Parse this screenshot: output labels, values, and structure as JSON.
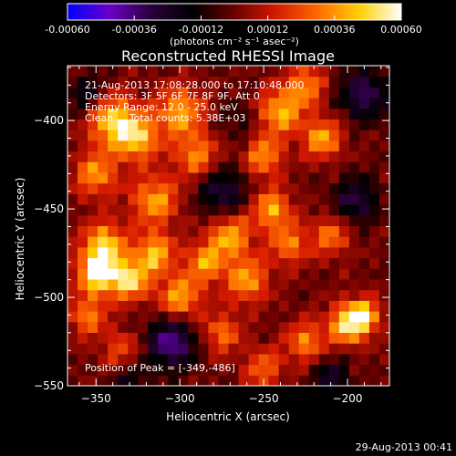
{
  "chart_data": {
    "type": "heatmap",
    "title": "Reconstructed RHESSI Image",
    "xlabel": "Heliocentric X (arcsec)",
    "ylabel": "Heliocentric Y (arcsec)",
    "xlim": [
      -367,
      -175
    ],
    "ylim": [
      -550,
      -369
    ],
    "x_ticks": [
      -350,
      -300,
      -250,
      -200
    ],
    "y_ticks": [
      -400,
      -450,
      -500,
      -550
    ],
    "colorbar": {
      "tick_labels": [
        "-0.00060",
        "-0.00036",
        "-0.00012",
        "0.00012",
        "0.00036",
        "0.00060"
      ],
      "tick_values": [
        -0.0006,
        -0.00036,
        -0.00012,
        0.00012,
        0.00036,
        0.0006
      ],
      "range": [
        -0.0006,
        0.0006
      ],
      "unit_label": "(photons cm⁻² s⁻¹ asec⁻²)"
    },
    "colormap": [
      "#0000ff",
      "#6a00c8",
      "#2a003a",
      "#000000",
      "#6a0000",
      "#d41a00",
      "#ff6a00",
      "#ffd000",
      "#ffffff"
    ],
    "info_lines": [
      "21-Aug-2013 17:08:28.000 to 17:10:48.000",
      "Detectors: 3F 5F 6F 7F 8F 9F, Att 0",
      "Energy Range: 12.0 - 25.0 keV",
      "Clean     Total counts: 5.38E+03"
    ],
    "peak_label": "Position of Peak = [-349,-486]",
    "peak_position": [
      -349,
      -486
    ],
    "image_grid": {
      "description": "Approximate clean-image intensity sampled on a regular grid; values in colorbar units",
      "nx": 32,
      "ny": 30,
      "blobs": [
        {
          "x": -340,
          "y": -400,
          "amp": 0.00048,
          "sigma": 10
        },
        {
          "x": -325,
          "y": -410,
          "amp": 0.00042,
          "sigma": 9
        },
        {
          "x": -300,
          "y": -395,
          "amp": 0.0004,
          "sigma": 10
        },
        {
          "x": -290,
          "y": -420,
          "amp": 0.00034,
          "sigma": 9
        },
        {
          "x": -350,
          "y": -430,
          "amp": 0.00036,
          "sigma": 9
        },
        {
          "x": -315,
          "y": -445,
          "amp": 0.00038,
          "sigma": 10
        },
        {
          "x": -345,
          "y": -470,
          "amp": 0.00045,
          "sigma": 9
        },
        {
          "x": -349,
          "y": -486,
          "amp": 0.0006,
          "sigma": 8
        },
        {
          "x": -330,
          "y": -490,
          "amp": 0.0005,
          "sigma": 8
        },
        {
          "x": -315,
          "y": -475,
          "amp": 0.00044,
          "sigma": 8
        },
        {
          "x": -300,
          "y": -500,
          "amp": 0.0004,
          "sigma": 9
        },
        {
          "x": -285,
          "y": -480,
          "amp": 0.00036,
          "sigma": 8
        },
        {
          "x": -270,
          "y": -465,
          "amp": 0.0004,
          "sigma": 9
        },
        {
          "x": -260,
          "y": -490,
          "amp": 0.00038,
          "sigma": 9
        },
        {
          "x": -245,
          "y": -450,
          "amp": 0.0004,
          "sigma": 8
        },
        {
          "x": -250,
          "y": -420,
          "amp": 0.00036,
          "sigma": 8
        },
        {
          "x": -240,
          "y": -395,
          "amp": 0.00042,
          "sigma": 9
        },
        {
          "x": -215,
          "y": -410,
          "amp": 0.0004,
          "sigma": 8
        },
        {
          "x": -225,
          "y": -380,
          "amp": 0.00034,
          "sigma": 8
        },
        {
          "x": -235,
          "y": -470,
          "amp": 0.00032,
          "sigma": 8
        },
        {
          "x": -210,
          "y": -465,
          "amp": 0.0003,
          "sigma": 8
        },
        {
          "x": -200,
          "y": -515,
          "amp": 0.00048,
          "sigma": 8
        },
        {
          "x": -190,
          "y": -510,
          "amp": 0.0004,
          "sigma": 7
        },
        {
          "x": -225,
          "y": -525,
          "amp": 0.00034,
          "sigma": 8
        },
        {
          "x": -275,
          "y": -520,
          "amp": 0.0003,
          "sigma": 8
        },
        {
          "x": -250,
          "y": -540,
          "amp": 0.00028,
          "sigma": 8
        },
        {
          "x": -355,
          "y": -510,
          "amp": 0.00032,
          "sigma": 8
        },
        {
          "x": -335,
          "y": -530,
          "amp": 0.00024,
          "sigma": 8
        },
        {
          "x": -275,
          "y": -440,
          "amp": -0.0003,
          "sigma": 10
        },
        {
          "x": -305,
          "y": -525,
          "amp": -0.00042,
          "sigma": 10
        },
        {
          "x": -355,
          "y": -385,
          "amp": -0.00022,
          "sigma": 8
        },
        {
          "x": -190,
          "y": -385,
          "amp": -0.00034,
          "sigma": 10
        },
        {
          "x": -195,
          "y": -445,
          "amp": -0.0003,
          "sigma": 9
        },
        {
          "x": -210,
          "y": -545,
          "amp": -0.00024,
          "sigma": 8
        },
        {
          "x": -265,
          "y": -400,
          "amp": -0.00012,
          "sigma": 8
        },
        {
          "x": -330,
          "y": -545,
          "amp": -0.00018,
          "sigma": 8
        }
      ]
    }
  },
  "footer": {
    "date": "29-Aug-2013 00:41"
  }
}
